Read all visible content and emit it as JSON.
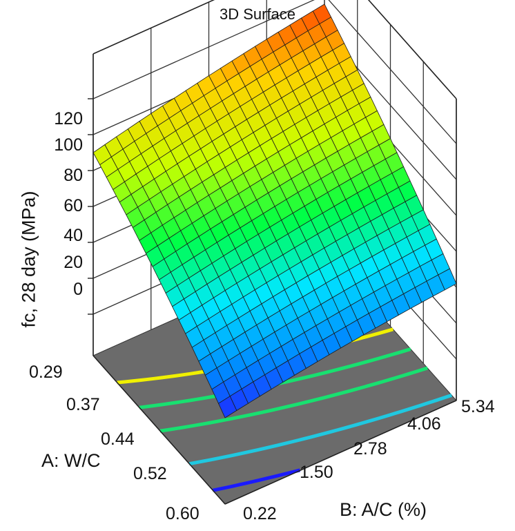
{
  "chart_data": {
    "type": "surface3d",
    "title": "3D Surface",
    "zlabel": "fc, 28 day (MPa)",
    "xlabel": "A: W/C",
    "ylabel": "B: A/C (%)",
    "z_ticks": [
      "120",
      "100",
      "80",
      "60",
      "40",
      "20",
      "0"
    ],
    "zlim": [
      0,
      120
    ],
    "a_ticks": [
      "0.29",
      "0.37",
      "0.44",
      "0.52",
      "0.60"
    ],
    "alim": [
      0.29,
      0.6
    ],
    "b_ticks": [
      "0.22",
      "1.50",
      "2.78",
      "4.06",
      "5.34"
    ],
    "blim": [
      0.22,
      5.34
    ],
    "grid": true,
    "corner_values": {
      "A_0.29_B_0.22": 90,
      "A_0.29_B_5.34": 115,
      "A_0.60_B_0.22": 25,
      "A_0.60_B_5.34": 42
    },
    "floor_contours": [
      "yellow",
      "green",
      "green",
      "cyan",
      "blue",
      "blue"
    ],
    "colormap": [
      "#2b00ff",
      "#0088ff",
      "#00e8ff",
      "#00ff44",
      "#c8ff00",
      "#ffd000",
      "#ff2a00"
    ]
  }
}
